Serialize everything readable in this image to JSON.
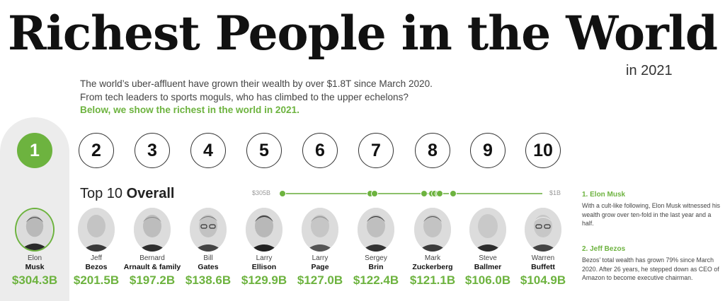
{
  "title": "Richest People in the World",
  "subtitle_year": "in 2021",
  "intro": {
    "line1": "The world’s uber-affluent have grown their wealth by over $1.8T since March 2020.",
    "line2": "From tech leaders to sports moguls, who has climbed to the upper echelons?",
    "highlight": "Below, we show the richest in the world in 2021."
  },
  "ranks": [
    "1",
    "2",
    "3",
    "4",
    "5",
    "6",
    "7",
    "8",
    "9",
    "10"
  ],
  "top10": {
    "prefix": "Top 10",
    "bold": "Overall"
  },
  "scale": {
    "left_label": "$305B",
    "right_label": "$1B",
    "max": 305,
    "min": 1
  },
  "people": [
    {
      "first": "Elon",
      "last": "Musk",
      "worth": "$304.3B",
      "value": 304.3
    },
    {
      "first": "Jeff",
      "last": "Bezos",
      "worth": "$201.5B",
      "value": 201.5
    },
    {
      "first": "Bernard",
      "last": "Arnault & family",
      "worth": "$197.2B",
      "value": 197.2
    },
    {
      "first": "Bill",
      "last": "Gates",
      "worth": "$138.6B",
      "value": 138.6
    },
    {
      "first": "Larry",
      "last": "Ellison",
      "worth": "$129.9B",
      "value": 129.9
    },
    {
      "first": "Larry",
      "last": "Page",
      "worth": "$127.0B",
      "value": 127.0
    },
    {
      "first": "Sergey",
      "last": "Brin",
      "worth": "$122.4B",
      "value": 122.4
    },
    {
      "first": "Mark",
      "last": "Zuckerberg",
      "worth": "$121.1B",
      "value": 121.1
    },
    {
      "first": "Steve",
      "last": "Ballmer",
      "worth": "$106.0B",
      "value": 106.0
    },
    {
      "first": "Warren",
      "last": "Buffett",
      "worth": "$104.9B",
      "value": 104.9
    }
  ],
  "sidebar": [
    {
      "heading": "1. Elon Musk",
      "text": "With a cult-like following, Elon Musk witnessed his wealth grow over ten-fold in the last year and a half."
    },
    {
      "heading": "2. Jeff Bezos",
      "text": "Bezos’ total wealth has grown 79% since March 2020. After 26 years, he stepped down as CEO of Amazon to become executive chairman."
    }
  ],
  "colors": {
    "accent": "#6db33f",
    "highlight_bg": "#ececec",
    "text": "#222222"
  }
}
